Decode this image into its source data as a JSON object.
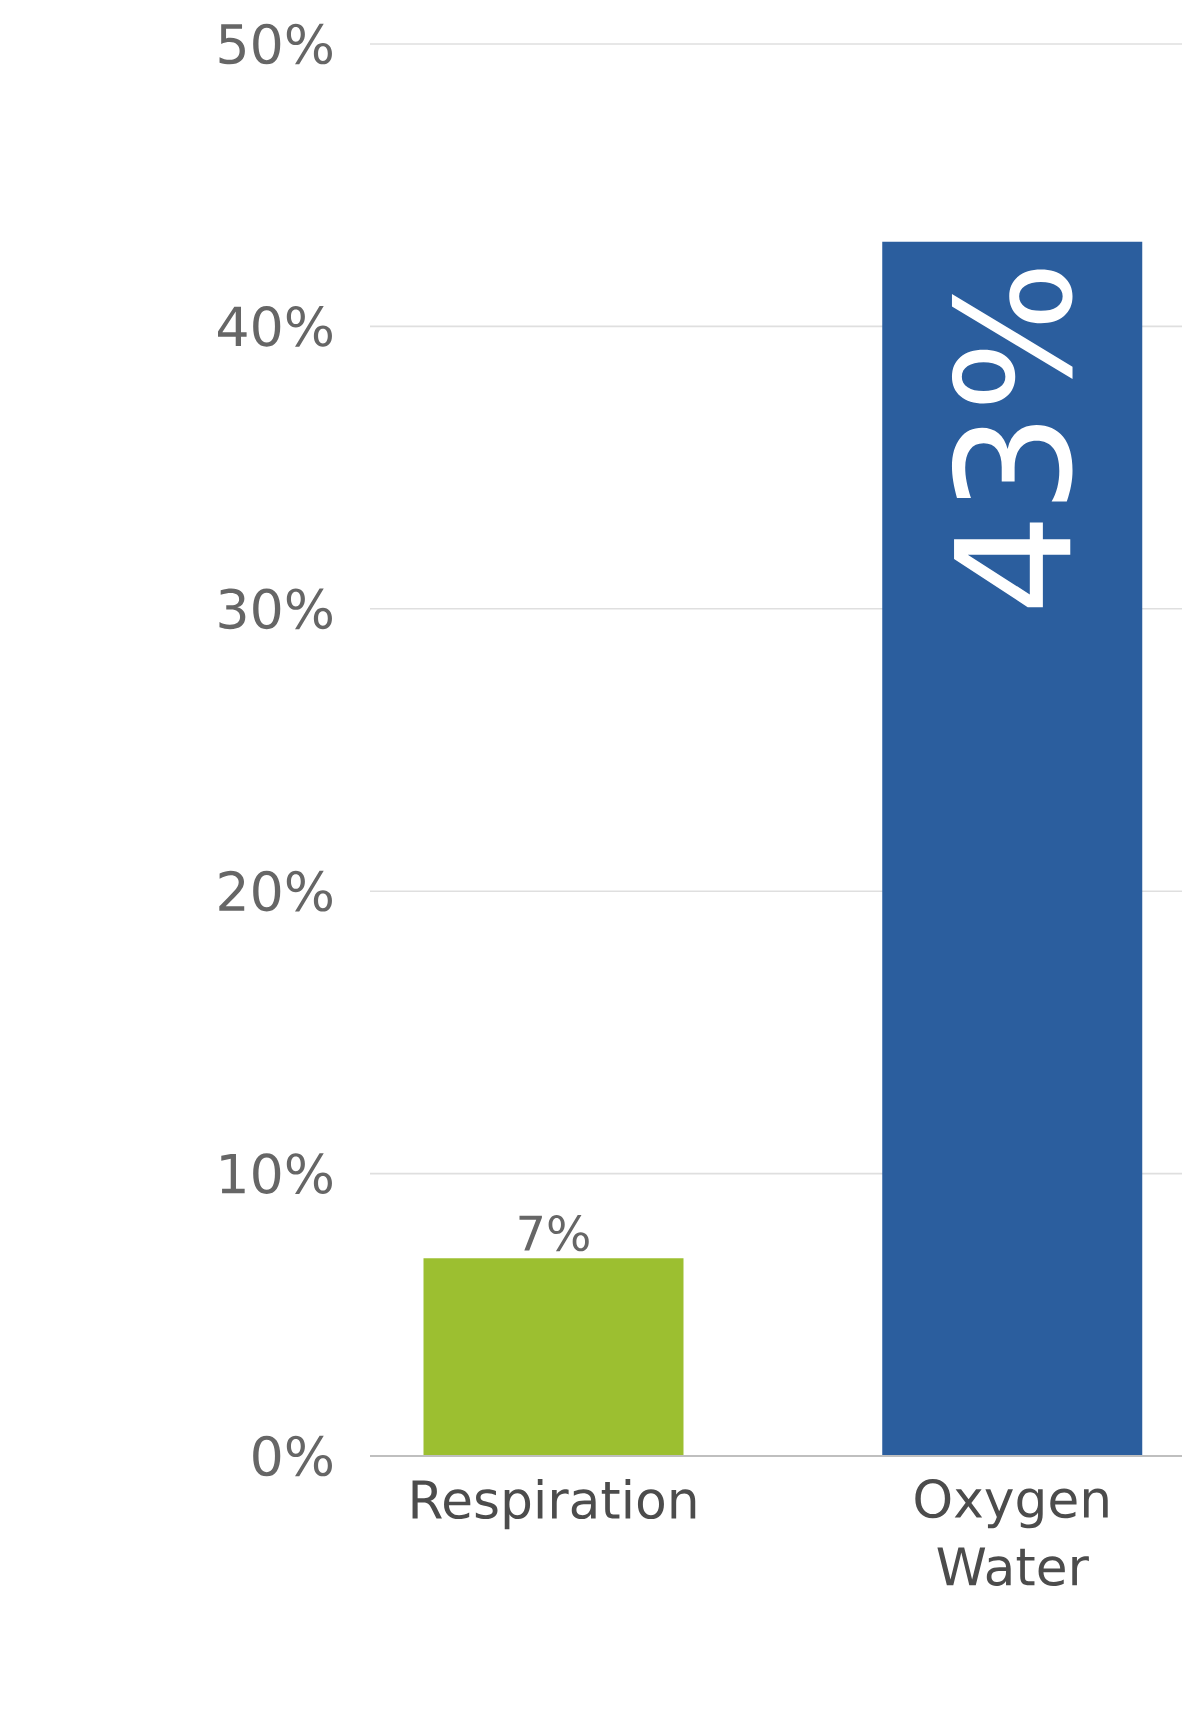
{
  "chart_data": {
    "type": "bar",
    "categories": [
      "Respiration",
      "Oxygen Water"
    ],
    "values": [
      7,
      43
    ],
    "colors": [
      "#9cbf30",
      "#2b5e9e"
    ],
    "value_labels": [
      "7%",
      "43%"
    ],
    "ylim": [
      0,
      50
    ],
    "yticks": [
      {
        "value": 0,
        "label": "0%"
      },
      {
        "value": 10,
        "label": "10%"
      },
      {
        "value": 20,
        "label": "20%"
      },
      {
        "value": 30,
        "label": "30%"
      },
      {
        "value": 40,
        "label": "40%"
      },
      {
        "value": 50,
        "label": "50%"
      }
    ],
    "grid": "y"
  }
}
